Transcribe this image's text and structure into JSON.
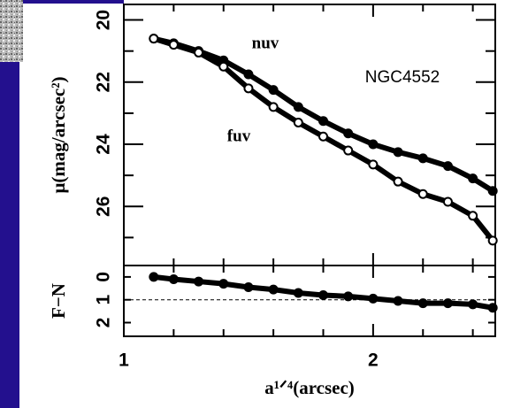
{
  "chart_data": [
    {
      "type": "line",
      "ylabel": "μ(mag/arcsec²)",
      "annotation": "NGC4552",
      "x": [
        1.12,
        1.2,
        1.3,
        1.4,
        1.5,
        1.6,
        1.7,
        1.8,
        1.9,
        2.0,
        2.1,
        2.2,
        2.3,
        2.4,
        2.48
      ],
      "series": [
        {
          "name": "nuv",
          "color": "#000000",
          "values": [
            20.6,
            20.75,
            21.0,
            21.3,
            21.75,
            22.25,
            22.8,
            23.25,
            23.65,
            24.0,
            24.25,
            24.45,
            24.7,
            25.1,
            25.5
          ]
        },
        {
          "name": "fuv",
          "color": "#000000",
          "values": [
            20.6,
            20.8,
            21.05,
            21.5,
            22.2,
            22.8,
            23.3,
            23.75,
            24.2,
            24.65,
            25.2,
            25.6,
            25.85,
            26.3,
            27.1
          ]
        }
      ],
      "xlim": [
        1,
        2.49
      ],
      "xticks": [
        1,
        2
      ],
      "xminor": [
        1.2,
        1.4,
        1.6,
        1.8,
        2.2,
        2.4
      ],
      "ylim": [
        19.5,
        27.9
      ],
      "yticks": [
        20,
        22,
        24,
        26
      ],
      "yminor": [
        21,
        23,
        25,
        27
      ],
      "inverted_y": true
    },
    {
      "type": "line",
      "ylabel": "F−N",
      "xlabel": "a¹ᐟ⁴(arcsec)",
      "x": [
        1.12,
        1.2,
        1.3,
        1.4,
        1.5,
        1.6,
        1.7,
        1.8,
        1.9,
        2.0,
        2.1,
        2.2,
        2.3,
        2.4,
        2.48
      ],
      "series": [
        {
          "color": "#000000",
          "values": [
            0,
            0.1,
            0.2,
            0.3,
            0.45,
            0.55,
            0.7,
            0.8,
            0.85,
            0.95,
            1.05,
            1.15,
            1.15,
            1.2,
            1.35
          ]
        }
      ],
      "hline": 1,
      "xlim": [
        1,
        2.49
      ],
      "xticks": [
        1,
        2
      ],
      "xminor": [
        1.2,
        1.4,
        1.6,
        1.8,
        2.2,
        2.4
      ],
      "ylim": [
        -0.5,
        2.6
      ],
      "yticks": [
        0,
        1,
        2
      ],
      "inverted_y": true
    }
  ]
}
